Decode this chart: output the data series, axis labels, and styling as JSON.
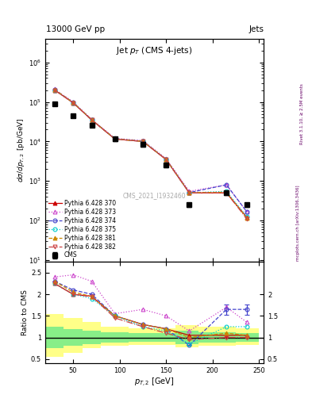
{
  "title_top": "13000 GeV pp",
  "title_right": "Jets",
  "plot_title": "Jet $p_T$ (CMS 4-jets)",
  "xlabel": "$p_{T,2}$ [GeV]",
  "ylabel_main": "$d\\sigma/dp_{T,2}$ [pb/GeV]",
  "ylabel_ratio": "Ratio to CMS",
  "watermark": "CMS_2021_I1932460",
  "rivet_label": "Rivet 3.1.10, ≥ 2.5M events",
  "arxiv_label": "mcplots.cern.ch [arXiv:1306.3436]",
  "xvals": [
    30,
    50,
    70,
    95,
    125,
    150,
    175,
    215,
    237
  ],
  "cms_y": [
    90000.0,
    45000.0,
    26000.0,
    11500.0,
    8500.0,
    2500.0,
    250.0,
    500.0,
    250.0
  ],
  "cms_yerr": [
    10000.0,
    5000.0,
    3000.0,
    1500.0,
    1000.0,
    300.0,
    30.0,
    50.0,
    30.0
  ],
  "py370_y": [
    200000.0,
    95000.0,
    35000.0,
    11500.0,
    10000.0,
    3500.0,
    500.0,
    500.0,
    120.0
  ],
  "py373_y": [
    210000.0,
    100000.0,
    36000.0,
    12000.0,
    10500.0,
    3700.0,
    550.0,
    800.0,
    165.0
  ],
  "py374_y": [
    205000.0,
    97000.0,
    35200.0,
    11700.0,
    10200.0,
    3550.0,
    510.0,
    800.0,
    165.0
  ],
  "py375_y": [
    200000.0,
    95000.0,
    35000.0,
    11500.0,
    10000.0,
    3500.0,
    500.0,
    550.0,
    125.0
  ],
  "py381_y": [
    205000.0,
    96000.0,
    35200.0,
    11600.0,
    10100.0,
    3520.0,
    505.0,
    520.0,
    115.0
  ],
  "py382_y": [
    200000.0,
    95000.0,
    35000.0,
    11500.0,
    10000.0,
    3500.0,
    500.0,
    500.0,
    110.0
  ],
  "ratio_py370_y": [
    2.25,
    2.0,
    1.95,
    1.5,
    1.3,
    1.2,
    1.05,
    1.05,
    1.05
  ],
  "ratio_py373_y": [
    2.4,
    2.45,
    2.3,
    1.55,
    1.65,
    1.5,
    1.15,
    1.7,
    1.35
  ],
  "ratio_py374_y": [
    2.3,
    2.1,
    2.0,
    1.5,
    1.3,
    1.2,
    0.82,
    1.65,
    1.65
  ],
  "ratio_py375_y": [
    2.25,
    2.0,
    1.9,
    1.5,
    1.25,
    1.15,
    0.85,
    1.25,
    1.25
  ],
  "ratio_py381_y": [
    2.3,
    2.05,
    1.95,
    1.5,
    1.3,
    1.2,
    1.0,
    1.1,
    1.05
  ],
  "ratio_py382_y": [
    2.25,
    2.0,
    1.95,
    1.45,
    1.25,
    1.1,
    0.95,
    1.0,
    1.0
  ],
  "ratio_py374_yerr": [
    0.0,
    0.0,
    0.0,
    0.0,
    0.0,
    0.0,
    0.0,
    0.12,
    0.12
  ],
  "xedges": [
    20,
    40,
    60,
    80,
    110,
    140,
    160,
    185,
    225,
    250
  ],
  "green_lo": [
    0.75,
    0.8,
    0.85,
    0.88,
    0.9,
    0.9,
    0.85,
    0.88,
    0.9
  ],
  "green_hi": [
    1.25,
    1.2,
    1.15,
    1.12,
    1.1,
    1.1,
    1.15,
    1.12,
    1.1
  ],
  "yellow_lo": [
    0.55,
    0.65,
    0.75,
    0.8,
    0.82,
    0.82,
    0.78,
    0.8,
    0.82
  ],
  "yellow_hi": [
    1.55,
    1.45,
    1.35,
    1.25,
    1.22,
    1.22,
    1.28,
    1.25,
    1.22
  ],
  "color_370": "#cc0000",
  "color_373": "#cc44cc",
  "color_374": "#4444cc",
  "color_375": "#00cccc",
  "color_381": "#cc8800",
  "color_382": "#cc4444",
  "xlim": [
    20,
    255
  ],
  "ylim_main": [
    9,
    4000000.0
  ],
  "ylim_ratio": [
    0.4,
    2.75
  ]
}
